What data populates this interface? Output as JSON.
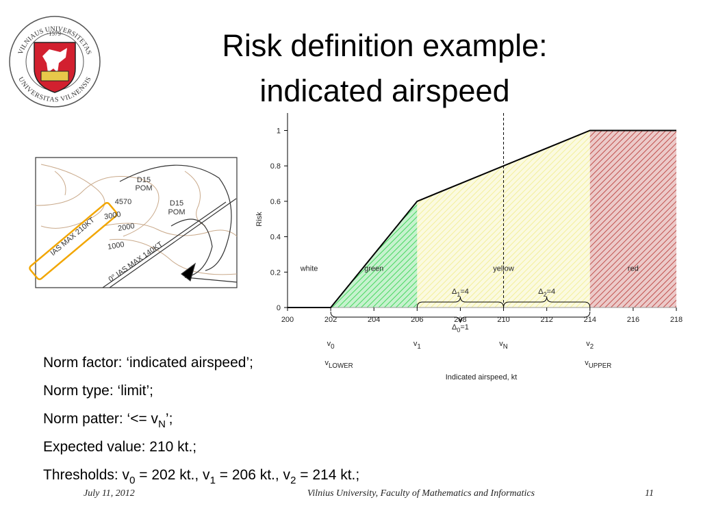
{
  "logo": {
    "top": "VILNIAUS UNIVERSITETAS",
    "year": "·1579·",
    "bottom": "UNIVERSITAS VILNENSIS"
  },
  "title": [
    "Risk definition example:",
    "indicated airspeed"
  ],
  "map": {
    "labels": [
      "IAS MAX 210KT",
      "D15",
      "POM",
      "4570",
      "D15",
      "POM",
      "3000",
      "2000",
      "1000",
      "0° IAS MAX 140KT"
    ]
  },
  "chart_data": {
    "type": "line",
    "y_label": "Risk",
    "x_label": "Indicated airspeed, kt",
    "x": [
      200,
      202,
      206,
      214,
      218
    ],
    "series": [
      {
        "color": "#000000",
        "values": [
          0,
          0,
          0.6,
          1,
          1
        ]
      }
    ],
    "xlim": [
      200,
      218
    ],
    "xticks": [
      200,
      202,
      204,
      206,
      208,
      210,
      212,
      214,
      216,
      218
    ],
    "ylim": [
      0,
      1.06
    ],
    "yticks": [
      0,
      0.2,
      0.4,
      0.6,
      0.8,
      1
    ],
    "zones": [
      {
        "name": "white",
        "from": 200,
        "to": 202,
        "color": "#ffffff"
      },
      {
        "name": "green",
        "from": 202,
        "to": 206,
        "color": "#44d65c"
      },
      {
        "name": "yellow",
        "from": 206,
        "to": 214,
        "color": "#f3ef9a"
      },
      {
        "name": "red",
        "from": 214,
        "to": 218,
        "color": "#c0504d"
      }
    ],
    "markers": [
      {
        "base": "v",
        "sub": "0",
        "x": 202
      },
      {
        "base": "v",
        "sub": "1",
        "x": 206
      },
      {
        "base": "v",
        "sub": "N",
        "x": 210
      },
      {
        "base": "v",
        "sub": "2",
        "x": 214
      }
    ],
    "bound_markers": [
      {
        "base": "v",
        "sub": "LOWER",
        "x": 202
      },
      {
        "base": "v",
        "sub": "UPPER",
        "x": 214
      }
    ],
    "dashed_marker": 2,
    "braces": [
      {
        "base": "Δ",
        "sub": "1",
        "rest": "=4",
        "from": 206,
        "to": 210
      },
      {
        "base": "Δ",
        "sub": "2",
        "rest": "=4",
        "from": 210,
        "to": 214
      }
    ],
    "axis_brace": {
      "base": "Δ",
      "sub": "0",
      "rest": "=1",
      "from": 202,
      "to": 214
    }
  },
  "bullets": [
    [
      {
        "text": "Norm factor: ‘indicated airspeed’;"
      }
    ],
    [
      {
        "text": "Norm type: ‘limit’;"
      }
    ],
    [
      {
        "text": "Norm patter: ‘<= v"
      },
      {
        "sub": "N"
      },
      {
        "text": "’;"
      }
    ],
    [
      {
        "text": "Expected value: 210 kt.;"
      }
    ],
    [
      {
        "text": "Thresholds: v"
      },
      {
        "sub": "0"
      },
      {
        "text": " = 202 kt., v"
      },
      {
        "sub": "1"
      },
      {
        "text": " = 206 kt., v"
      },
      {
        "sub": "2"
      },
      {
        "text": " = 214 kt.;"
      }
    ]
  ],
  "footer": {
    "date": "July 11, 2012",
    "org": "Vilnius University, Faculty of Mathematics and Informatics",
    "page": "11"
  }
}
